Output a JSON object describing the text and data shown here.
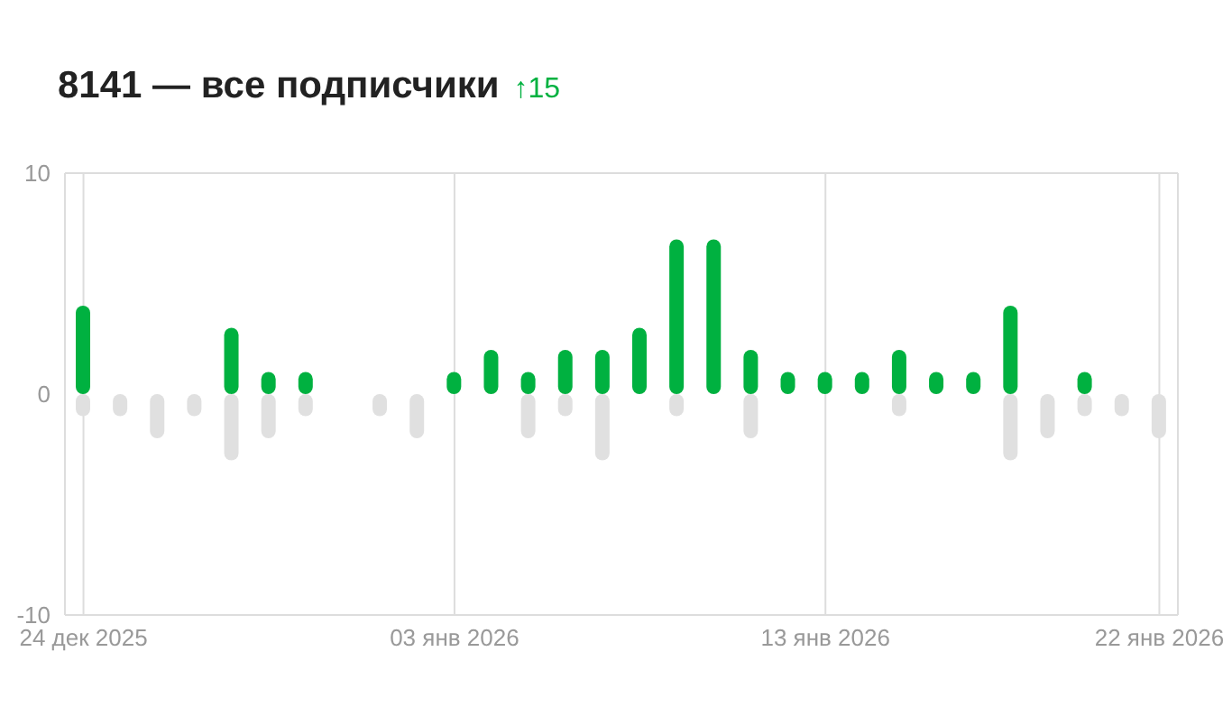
{
  "chart_data": {
    "type": "bar",
    "title": "8141 — все подписчики",
    "annotations": [
      "↑15"
    ],
    "x": [
      "2025-12-24",
      "2025-12-25",
      "2025-12-26",
      "2025-12-27",
      "2025-12-28",
      "2025-12-29",
      "2025-12-30",
      "2025-12-31",
      "2026-01-01",
      "2026-01-02",
      "2026-01-03",
      "2026-01-04",
      "2026-01-05",
      "2026-01-06",
      "2026-01-07",
      "2026-01-08",
      "2026-01-09",
      "2026-01-10",
      "2026-01-11",
      "2026-01-12",
      "2026-01-13",
      "2026-01-14",
      "2026-01-15",
      "2026-01-16",
      "2026-01-17",
      "2026-01-18",
      "2026-01-19",
      "2026-01-20",
      "2026-01-21",
      "2026-01-22"
    ],
    "series": [
      {
        "color": "#00b140",
        "values": [
          4,
          0,
          0,
          0,
          3,
          1,
          1,
          0,
          0,
          0,
          1,
          2,
          1,
          2,
          2,
          3,
          7,
          7,
          2,
          1,
          1,
          1,
          2,
          1,
          1,
          4,
          0,
          1,
          0,
          0
        ]
      },
      {
        "color": "#e0e0e0",
        "values": [
          -1,
          -1,
          -2,
          -1,
          -3,
          -2,
          -1,
          0,
          -1,
          -2,
          0,
          0,
          -2,
          -1,
          -3,
          0,
          -1,
          0,
          -2,
          0,
          0,
          0,
          -1,
          0,
          0,
          -3,
          -2,
          -1,
          -1,
          -2
        ]
      }
    ],
    "stacked": true,
    "xlim": [
      "2025-12-23T12:00",
      "2026-01-22T12:00"
    ],
    "xticks": [
      {
        "value": "2025-12-24",
        "label": "24 дек 2025"
      },
      {
        "value": "2026-01-03",
        "label": "03 янв 2026"
      },
      {
        "value": "2026-01-13",
        "label": "13 янв 2026"
      },
      {
        "value": "2026-01-22",
        "label": "22 янв 2026"
      }
    ],
    "ylim": [
      -10,
      10
    ],
    "yticks": [
      -10,
      0,
      10
    ],
    "grid": "x"
  }
}
